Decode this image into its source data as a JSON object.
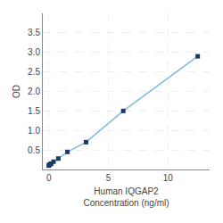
{
  "chart_data": {
    "type": "line",
    "xlabel": "Human IQGAP2\nConcentration (ng/ml)",
    "ylabel": "OD",
    "x": [
      0.0,
      0.05,
      0.1,
      0.2,
      0.4,
      0.8,
      1.5625,
      3.125,
      6.25,
      12.5
    ],
    "series": [
      {
        "type": "line",
        "color": "#7BBCDB",
        "values": [
          0.1,
          0.12,
          0.13,
          0.15,
          0.2,
          0.28,
          0.45,
          0.7,
          1.5,
          2.9
        ]
      },
      {
        "type": "scatter",
        "color": "#1B3A6B",
        "marker": "square",
        "values": [
          0.1,
          0.12,
          0.13,
          0.15,
          0.2,
          0.28,
          0.45,
          0.7,
          1.5,
          2.9
        ]
      }
    ],
    "xlim": [
      -0.5,
      13.5
    ],
    "ylim": [
      0,
      4.0
    ],
    "xticks": [
      0,
      5,
      10
    ],
    "yticks": [
      0.5,
      {
        "value": 1.0,
        "label": "1.0"
      },
      1.5,
      {
        "value": 2.0,
        "label": "2.0"
      },
      2.5,
      {
        "value": 3.0,
        "label": "3.0"
      },
      3.5
    ],
    "grid": true
  }
}
